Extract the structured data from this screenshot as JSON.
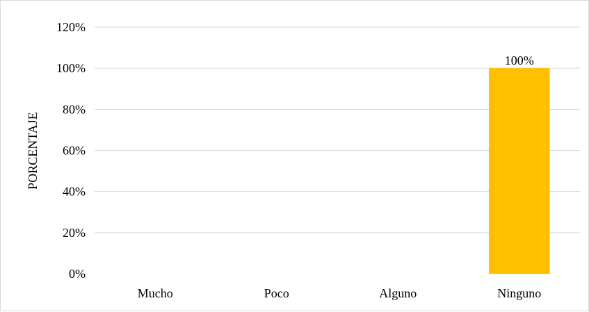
{
  "chart_data": {
    "type": "bar",
    "categories": [
      "Mucho",
      "Poco",
      "Alguno",
      "Ninguno"
    ],
    "values": [
      0,
      0,
      0,
      100
    ],
    "data_labels": [
      "",
      "",
      "",
      "100%"
    ],
    "ylabel": "PORCENTAJE",
    "xlabel": "",
    "ylim": [
      0,
      120
    ],
    "y_ticks": [
      "0%",
      "20%",
      "40%",
      "60%",
      "80%",
      "100%",
      "120%"
    ],
    "grid": true,
    "legend": "none",
    "bar_color": "#ffc000"
  }
}
